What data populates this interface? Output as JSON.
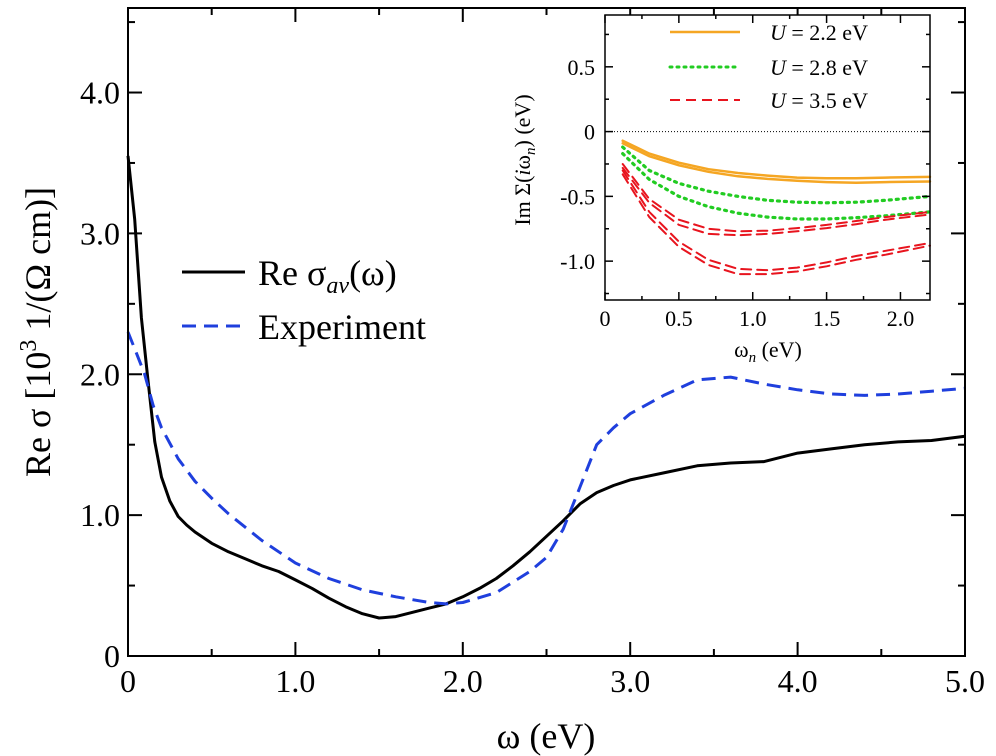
{
  "chart_data": [
    {
      "type": "line",
      "panel": "main",
      "xlabel_symbol": "ω",
      "xlabel_unit": "(eV)",
      "ylabel_main": "Re σ [10",
      "ylabel_sup": "3",
      "ylabel_tail": " 1/(Ω cm)]",
      "xlim": [
        0,
        5.0
      ],
      "ylim": [
        0,
        4.6
      ],
      "xticks": [
        0,
        1.0,
        2.0,
        3.0,
        4.0,
        5.0
      ],
      "xtick_labels": [
        "0",
        "1.0",
        "2.0",
        "3.0",
        "4.0",
        "5.0"
      ],
      "yticks": [
        0,
        1.0,
        2.0,
        3.0,
        4.0
      ],
      "ytick_labels": [
        "0",
        "1.0",
        "2.0",
        "3.0",
        "4.0"
      ],
      "legend_position": "center-left",
      "series": [
        {
          "name": "Re σ_av(ω)",
          "legend_main": "Re σ",
          "legend_sub": "av",
          "legend_tail": "(ω)",
          "color": "#000000",
          "style": "solid",
          "x": [
            0.0,
            0.04,
            0.08,
            0.12,
            0.16,
            0.2,
            0.25,
            0.3,
            0.35,
            0.4,
            0.5,
            0.6,
            0.7,
            0.8,
            0.9,
            1.0,
            1.1,
            1.2,
            1.3,
            1.4,
            1.5,
            1.6,
            1.7,
            1.8,
            1.9,
            2.0,
            2.1,
            2.2,
            2.3,
            2.4,
            2.5,
            2.6,
            2.7,
            2.8,
            2.9,
            3.0,
            3.2,
            3.4,
            3.6,
            3.8,
            4.0,
            4.2,
            4.4,
            4.6,
            4.8,
            5.0
          ],
          "y": [
            3.55,
            3.1,
            2.4,
            1.95,
            1.52,
            1.27,
            1.1,
            0.99,
            0.93,
            0.88,
            0.8,
            0.74,
            0.69,
            0.64,
            0.6,
            0.54,
            0.48,
            0.41,
            0.35,
            0.3,
            0.27,
            0.28,
            0.31,
            0.34,
            0.37,
            0.42,
            0.48,
            0.55,
            0.64,
            0.74,
            0.85,
            0.96,
            1.08,
            1.16,
            1.21,
            1.25,
            1.3,
            1.35,
            1.37,
            1.38,
            1.44,
            1.47,
            1.5,
            1.52,
            1.53,
            1.56
          ]
        },
        {
          "name": "Experiment",
          "color": "#1f3fdd",
          "style": "dashed",
          "x": [
            0.0,
            0.05,
            0.1,
            0.15,
            0.2,
            0.3,
            0.4,
            0.5,
            0.6,
            0.8,
            1.0,
            1.2,
            1.4,
            1.6,
            1.7,
            1.8,
            1.9,
            2.0,
            2.2,
            2.4,
            2.5,
            2.6,
            2.7,
            2.8,
            2.9,
            3.0,
            3.2,
            3.4,
            3.6,
            3.8,
            4.0,
            4.2,
            4.4,
            4.6,
            4.8,
            5.0
          ],
          "y": [
            2.3,
            2.15,
            2.0,
            1.78,
            1.62,
            1.4,
            1.24,
            1.12,
            1.01,
            0.82,
            0.66,
            0.55,
            0.47,
            0.42,
            0.4,
            0.38,
            0.37,
            0.38,
            0.45,
            0.6,
            0.7,
            0.9,
            1.2,
            1.5,
            1.62,
            1.72,
            1.85,
            1.96,
            1.98,
            1.93,
            1.89,
            1.86,
            1.85,
            1.86,
            1.88,
            1.9
          ]
        }
      ]
    },
    {
      "type": "line",
      "panel": "inset",
      "xlabel_symbol": "ω",
      "xlabel_sub": "n",
      "xlabel_unit": " (eV)",
      "ylabel_a": "Im Σ(",
      "ylabel_i": "i",
      "ylabel_b": "ω",
      "ylabel_sub": "n",
      "ylabel_c": ") (eV)",
      "xlim": [
        0,
        2.2
      ],
      "ylim": [
        -1.3,
        0.9
      ],
      "xticks": [
        0,
        0.5,
        1.0,
        1.5,
        2.0
      ],
      "xtick_labels": [
        "0",
        "0.5",
        "1.0",
        "1.5",
        "2.0"
      ],
      "yticks": [
        -1.0,
        -0.5,
        0,
        0.5
      ],
      "ytick_labels": [
        "-1.0",
        "-0.5",
        "0",
        "0.5"
      ],
      "zero_line": true,
      "legend_position": "top-right",
      "series": [
        {
          "name": "U = 2.2 eV",
          "legend_u": "U",
          "legend_value": " = 2.2 eV",
          "color": "#f5a623",
          "style": "solid",
          "x": [
            0.12,
            0.3,
            0.5,
            0.7,
            0.9,
            1.1,
            1.3,
            1.5,
            1.7,
            1.9,
            2.2
          ],
          "curves": [
            [
              -0.07,
              -0.17,
              -0.24,
              -0.29,
              -0.32,
              -0.34,
              -0.355,
              -0.36,
              -0.36,
              -0.355,
              -0.35
            ],
            [
              -0.09,
              -0.19,
              -0.26,
              -0.31,
              -0.345,
              -0.365,
              -0.38,
              -0.39,
              -0.395,
              -0.39,
              -0.385
            ]
          ]
        },
        {
          "name": "U = 2.8 eV",
          "legend_u": "U",
          "legend_value": " = 2.8 eV",
          "color": "#22cc22",
          "style": "dotted",
          "x": [
            0.12,
            0.3,
            0.5,
            0.7,
            0.9,
            1.1,
            1.3,
            1.5,
            1.7,
            1.9,
            2.2
          ],
          "curves": [
            [
              -0.12,
              -0.3,
              -0.4,
              -0.46,
              -0.5,
              -0.53,
              -0.545,
              -0.55,
              -0.545,
              -0.53,
              -0.5
            ],
            [
              -0.17,
              -0.37,
              -0.5,
              -0.58,
              -0.63,
              -0.66,
              -0.675,
              -0.675,
              -0.665,
              -0.65,
              -0.62
            ]
          ]
        },
        {
          "name": "U = 3.5 eV",
          "legend_u": "U",
          "legend_value": " = 3.5 eV",
          "color": "#e8141e",
          "style": "dashed",
          "x": [
            0.12,
            0.3,
            0.5,
            0.7,
            0.9,
            1.1,
            1.3,
            1.5,
            1.7,
            1.9,
            2.2
          ],
          "curves": [
            [
              -0.25,
              -0.52,
              -0.68,
              -0.75,
              -0.77,
              -0.765,
              -0.745,
              -0.72,
              -0.69,
              -0.66,
              -0.62
            ],
            [
              -0.28,
              -0.55,
              -0.72,
              -0.79,
              -0.8,
              -0.79,
              -0.77,
              -0.745,
              -0.715,
              -0.68,
              -0.64
            ],
            [
              -0.3,
              -0.62,
              -0.85,
              -0.99,
              -1.06,
              -1.07,
              -1.05,
              -1.01,
              -0.96,
              -0.92,
              -0.86
            ],
            [
              -0.33,
              -0.66,
              -0.89,
              -1.03,
              -1.1,
              -1.1,
              -1.08,
              -1.04,
              -0.99,
              -0.95,
              -0.88
            ]
          ]
        }
      ]
    }
  ]
}
